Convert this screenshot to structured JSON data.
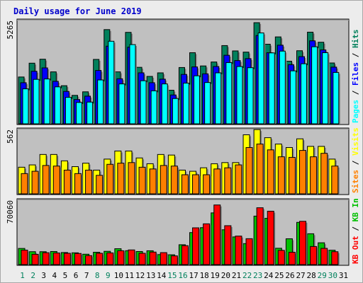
{
  "title": "Daily usage for June 2019",
  "colors": {
    "hits": "#00805c",
    "files": "#0000ff",
    "pages": "#00ffff",
    "visits": "#ffff00",
    "sites": "#ff8000",
    "kbin": "#00c000",
    "kbout": "#ff0000",
    "weekend_label": "#00805c",
    "panel_bg": "#c0c0c0"
  },
  "chart_data": [
    {
      "type": "bar",
      "name": "hits-files-pages",
      "ymax_label": "5265",
      "ymax": 5265,
      "categories": [
        "1",
        "2",
        "3",
        "4",
        "5",
        "6",
        "7",
        "8",
        "9",
        "10",
        "11",
        "12",
        "13",
        "14",
        "15",
        "16",
        "17",
        "18",
        "19",
        "20",
        "21",
        "22",
        "23",
        "24",
        "25",
        "26",
        "27",
        "28",
        "29",
        "30",
        "31"
      ],
      "weekend_days": [
        "1",
        "2",
        "8",
        "9",
        "15",
        "16",
        "22",
        "23",
        "29",
        "30"
      ],
      "legend": [
        {
          "label": "Hits",
          "color": "#00805c"
        },
        {
          "label": "Files",
          "color": "#0000ff"
        },
        {
          "label": "Pages",
          "color": "#00ffff"
        }
      ],
      "series": [
        {
          "name": "Hits",
          "values": [
            2370,
            3070,
            3270,
            2630,
            1930,
            1440,
            1620,
            3260,
            4770,
            2630,
            4630,
            2860,
            2400,
            2580,
            1700,
            2850,
            3600,
            2930,
            3130,
            3960,
            3690,
            3630,
            5120,
            4030,
            4400,
            3170,
            3700,
            4640,
            4130,
            3080,
            0
          ]
        },
        {
          "name": "Files",
          "values": [
            2080,
            2660,
            2830,
            2150,
            1640,
            1230,
            1400,
            2700,
            3930,
            2280,
            3880,
            2580,
            2080,
            2260,
            1460,
            2500,
            2880,
            2530,
            2900,
            3470,
            3200,
            3300,
            4470,
            3600,
            3980,
            2990,
            3400,
            4200,
            3740,
            2870,
            0
          ]
        },
        {
          "name": "Pages",
          "values": [
            1770,
            2250,
            2270,
            1870,
            1340,
            1080,
            1100,
            2220,
            4180,
            2020,
            4010,
            2180,
            1670,
            2020,
            1280,
            2060,
            2430,
            2090,
            2580,
            3100,
            2900,
            2840,
            4600,
            3590,
            3680,
            2680,
            3040,
            3900,
            3600,
            2600,
            0
          ]
        }
      ]
    },
    {
      "type": "bar",
      "name": "visits-sites",
      "ymax_label": "562",
      "ymax": 562,
      "categories": [
        "1",
        "2",
        "3",
        "4",
        "5",
        "6",
        "7",
        "8",
        "9",
        "10",
        "11",
        "12",
        "13",
        "14",
        "15",
        "16",
        "17",
        "18",
        "19",
        "20",
        "21",
        "22",
        "23",
        "24",
        "25",
        "26",
        "27",
        "28",
        "29",
        "30",
        "31"
      ],
      "legend": [
        {
          "label": "Visits",
          "color": "#ffff00"
        },
        {
          "label": "Sites",
          "color": "#ff8000"
        }
      ],
      "series": [
        {
          "name": "Visits",
          "values": [
            230,
            250,
            340,
            340,
            285,
            235,
            265,
            205,
            300,
            370,
            370,
            310,
            260,
            340,
            335,
            205,
            195,
            225,
            260,
            270,
            270,
            510,
            555,
            485,
            430,
            400,
            475,
            410,
            410,
            300,
            0
          ]
        },
        {
          "name": "Sites",
          "values": [
            175,
            195,
            245,
            240,
            205,
            175,
            205,
            160,
            255,
            265,
            270,
            230,
            215,
            245,
            240,
            165,
            165,
            165,
            215,
            225,
            250,
            400,
            430,
            380,
            320,
            315,
            375,
            320,
            350,
            240,
            0
          ]
        }
      ]
    },
    {
      "type": "bar",
      "name": "kbin-kbout",
      "ymax_label": "70060",
      "ymax": 70060,
      "categories": [
        "1",
        "2",
        "3",
        "4",
        "5",
        "6",
        "7",
        "8",
        "9",
        "10",
        "11",
        "12",
        "13",
        "14",
        "15",
        "16",
        "17",
        "18",
        "19",
        "20",
        "21",
        "22",
        "23",
        "24",
        "25",
        "26",
        "27",
        "28",
        "29",
        "30",
        "31"
      ],
      "legend": [
        {
          "label": "KB In",
          "color": "#00c000"
        },
        {
          "label": "KB Out",
          "color": "#ff0000"
        }
      ],
      "series": [
        {
          "name": "KB In",
          "values": [
            17400,
            13900,
            13900,
            14100,
            13000,
            12700,
            11200,
            13300,
            14300,
            17100,
            15000,
            14100,
            14900,
            10800,
            10600,
            21400,
            34500,
            39800,
            55700,
            37500,
            29800,
            22600,
            52200,
            49800,
            17600,
            27800,
            45500,
            33200,
            23500,
            15500,
            0
          ]
        },
        {
          "name": "KB Out",
          "values": [
            15600,
            11100,
            12800,
            12500,
            12200,
            12000,
            9700,
            12200,
            12600,
            14900,
            15800,
            12200,
            13500,
            12900,
            9400,
            20400,
            39600,
            43900,
            64200,
            41900,
            30700,
            27900,
            61200,
            57500,
            15300,
            13300,
            46600,
            19500,
            17500,
            13900,
            0
          ]
        }
      ]
    }
  ]
}
